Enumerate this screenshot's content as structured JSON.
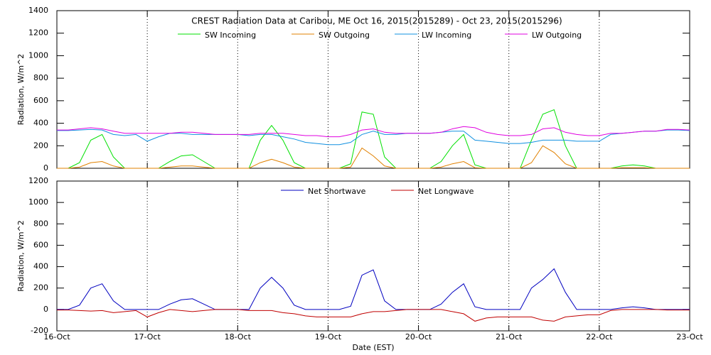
{
  "chart_data": [
    {
      "type": "line",
      "title": "CREST Radiation Data at Caribou, ME   Oct 16, 2015(2015289) - Oct 23, 2015(2015296)",
      "ylabel": "Radiation, W/m^2",
      "xlim": [
        0,
        7
      ],
      "ylim": [
        0,
        1400
      ],
      "yticks": [
        0,
        200,
        400,
        600,
        800,
        1000,
        1200,
        1400
      ],
      "x": [
        0,
        0.125,
        0.25,
        0.375,
        0.5,
        0.625,
        0.75,
        0.875,
        1,
        1.125,
        1.25,
        1.375,
        1.5,
        1.625,
        1.75,
        1.875,
        2,
        2.125,
        2.25,
        2.375,
        2.5,
        2.625,
        2.75,
        2.875,
        3,
        3.125,
        3.25,
        3.375,
        3.5,
        3.625,
        3.75,
        3.875,
        4,
        4.125,
        4.25,
        4.375,
        4.5,
        4.625,
        4.75,
        4.875,
        5,
        5.125,
        5.25,
        5.375,
        5.5,
        5.625,
        5.75,
        5.875,
        6,
        6.125,
        6.25,
        6.375,
        6.5,
        6.625,
        6.75,
        6.875,
        7
      ],
      "series": [
        {
          "name": "SW Incoming",
          "color": "#00e000",
          "values": [
            0,
            0,
            50,
            250,
            300,
            100,
            0,
            0,
            0,
            0,
            60,
            110,
            120,
            60,
            0,
            0,
            0,
            0,
            250,
            380,
            250,
            50,
            0,
            0,
            0,
            0,
            40,
            500,
            480,
            100,
            0,
            0,
            0,
            0,
            60,
            200,
            300,
            30,
            0,
            0,
            0,
            0,
            250,
            480,
            520,
            200,
            0,
            0,
            0,
            0,
            20,
            30,
            20,
            0,
            0,
            0,
            0
          ]
        },
        {
          "name": "SW Outgoing",
          "color": "#e08000",
          "values": [
            0,
            0,
            10,
            50,
            60,
            20,
            0,
            0,
            0,
            0,
            10,
            20,
            20,
            10,
            0,
            0,
            0,
            0,
            50,
            80,
            50,
            10,
            0,
            0,
            0,
            0,
            10,
            180,
            110,
            20,
            0,
            0,
            0,
            0,
            10,
            40,
            60,
            5,
            0,
            0,
            0,
            0,
            50,
            200,
            140,
            40,
            0,
            0,
            0,
            0,
            5,
            5,
            5,
            0,
            0,
            0,
            0
          ]
        },
        {
          "name": "LW Incoming",
          "color": "#1090e0",
          "values": [
            335,
            335,
            340,
            345,
            340,
            300,
            290,
            300,
            240,
            280,
            310,
            310,
            300,
            300,
            300,
            300,
            300,
            290,
            300,
            300,
            280,
            260,
            230,
            220,
            210,
            210,
            230,
            300,
            330,
            300,
            300,
            310,
            310,
            310,
            320,
            330,
            330,
            250,
            240,
            230,
            220,
            220,
            230,
            250,
            250,
            250,
            240,
            240,
            240,
            300,
            310,
            320,
            330,
            330,
            340,
            340,
            335
          ]
        },
        {
          "name": "LW Outgoing",
          "color": "#e000e0",
          "values": [
            340,
            340,
            350,
            360,
            350,
            330,
            310,
            310,
            310,
            310,
            310,
            320,
            320,
            310,
            300,
            300,
            300,
            300,
            310,
            310,
            310,
            300,
            290,
            290,
            280,
            280,
            300,
            340,
            350,
            320,
            310,
            310,
            310,
            310,
            320,
            350,
            370,
            360,
            320,
            300,
            290,
            290,
            300,
            350,
            360,
            320,
            300,
            290,
            290,
            310,
            310,
            320,
            330,
            330,
            345,
            345,
            340
          ]
        }
      ]
    },
    {
      "type": "line",
      "ylabel": "Radiation, W/m^2",
      "xlabel": "Date (EST)",
      "xlim": [
        0,
        7
      ],
      "xticks": [
        {
          "value": 0,
          "label": "16-Oct"
        },
        {
          "value": 1,
          "label": "17-Oct"
        },
        {
          "value": 2,
          "label": "18-Oct"
        },
        {
          "value": 3,
          "label": "19-Oct"
        },
        {
          "value": 4,
          "label": "20-Oct"
        },
        {
          "value": 5,
          "label": "21-Oct"
        },
        {
          "value": 6,
          "label": "22-Oct"
        },
        {
          "value": 7,
          "label": "23-Oct"
        }
      ],
      "ylim": [
        -200,
        1200
      ],
      "yticks": [
        -200,
        0,
        200,
        400,
        600,
        800,
        1000,
        1200
      ],
      "x": [
        0,
        0.125,
        0.25,
        0.375,
        0.5,
        0.625,
        0.75,
        0.875,
        1,
        1.125,
        1.25,
        1.375,
        1.5,
        1.625,
        1.75,
        1.875,
        2,
        2.125,
        2.25,
        2.375,
        2.5,
        2.625,
        2.75,
        2.875,
        3,
        3.125,
        3.25,
        3.375,
        3.5,
        3.625,
        3.75,
        3.875,
        4,
        4.125,
        4.25,
        4.375,
        4.5,
        4.625,
        4.75,
        4.875,
        5,
        5.125,
        5.25,
        5.375,
        5.5,
        5.625,
        5.75,
        5.875,
        6,
        6.125,
        6.25,
        6.375,
        6.5,
        6.625,
        6.75,
        6.875,
        7
      ],
      "series": [
        {
          "name": "Net Shortwave",
          "color": "#0000c0",
          "values": [
            0,
            0,
            40,
            200,
            240,
            80,
            0,
            0,
            0,
            0,
            50,
            90,
            100,
            50,
            0,
            0,
            0,
            0,
            200,
            300,
            200,
            40,
            0,
            0,
            0,
            0,
            30,
            320,
            370,
            80,
            0,
            0,
            0,
            0,
            50,
            160,
            240,
            25,
            0,
            0,
            0,
            0,
            200,
            280,
            380,
            160,
            0,
            0,
            0,
            0,
            15,
            25,
            15,
            0,
            0,
            0,
            0
          ]
        },
        {
          "name": "Net Longwave",
          "color": "#c00000",
          "values": [
            -5,
            -5,
            -10,
            -15,
            -10,
            -30,
            -20,
            -10,
            -70,
            -30,
            0,
            -10,
            -20,
            -10,
            0,
            0,
            0,
            -10,
            -10,
            -10,
            -30,
            -40,
            -60,
            -70,
            -70,
            -70,
            -70,
            -40,
            -20,
            -20,
            -10,
            0,
            0,
            0,
            0,
            -20,
            -40,
            -110,
            -80,
            -70,
            -70,
            -70,
            -70,
            -100,
            -110,
            -70,
            -60,
            -50,
            -50,
            -10,
            0,
            0,
            0,
            0,
            -5,
            -5,
            -5
          ]
        }
      ]
    }
  ]
}
